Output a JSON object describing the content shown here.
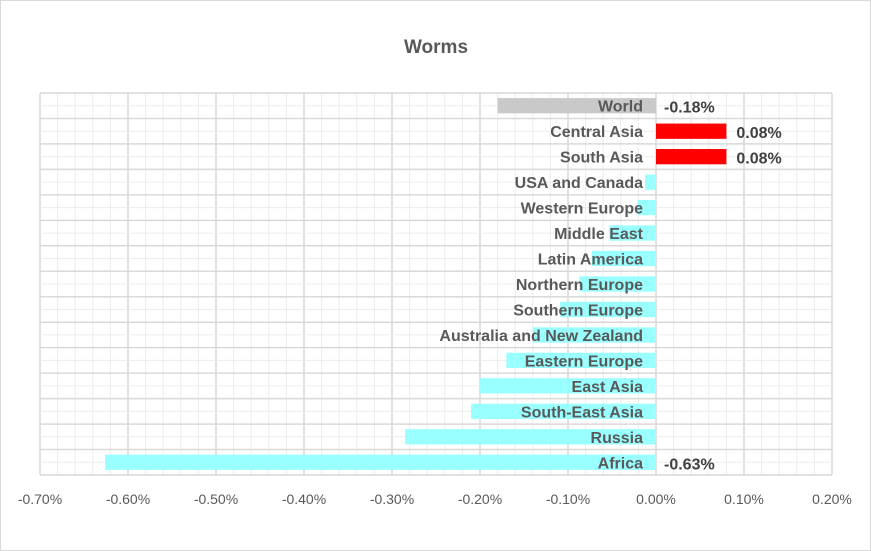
{
  "chart_data": {
    "type": "bar",
    "orientation": "horizontal",
    "title": "Worms",
    "xlabel": "",
    "ylabel": "",
    "xlim": [
      -0.007,
      0.002
    ],
    "x_ticks": [
      "-0.70%",
      "-0.60%",
      "-0.50%",
      "-0.40%",
      "-0.30%",
      "-0.20%",
      "-0.10%",
      "0.00%",
      "0.10%",
      "0.20%"
    ],
    "grid": true,
    "legend": "none",
    "categories": [
      "World",
      "Central Asia",
      "South Asia",
      "USA and Canada",
      "Western Europe",
      "Middle East",
      "Latin America",
      "Northern Europe",
      "Southern Europe",
      "Australia and New Zealand",
      "Eastern Europe",
      "East Asia",
      "South-East Asia",
      "Russia",
      "Africa"
    ],
    "values": [
      -0.0018,
      0.0008,
      0.0008,
      -0.000125,
      -0.00021,
      -0.00053,
      -0.00073,
      -0.00087,
      -0.00109,
      -0.0014,
      -0.0017,
      -0.002,
      -0.0021,
      -0.00285,
      -0.00626
    ],
    "colors": [
      "#C9C9C9",
      "#FF0000",
      "#FF0000",
      "#99FFFF",
      "#99FFFF",
      "#99FFFF",
      "#99FFFF",
      "#99FFFF",
      "#99FFFF",
      "#99FFFF",
      "#99FFFF",
      "#99FFFF",
      "#99FFFF",
      "#99FFFF",
      "#99FFFF"
    ],
    "data_labels": [
      "-0.18%",
      "0.08%",
      "0.08%",
      "",
      "",
      "",
      "",
      "",
      "",
      "",
      "",
      "",
      "",
      "",
      "-0.63%"
    ]
  }
}
